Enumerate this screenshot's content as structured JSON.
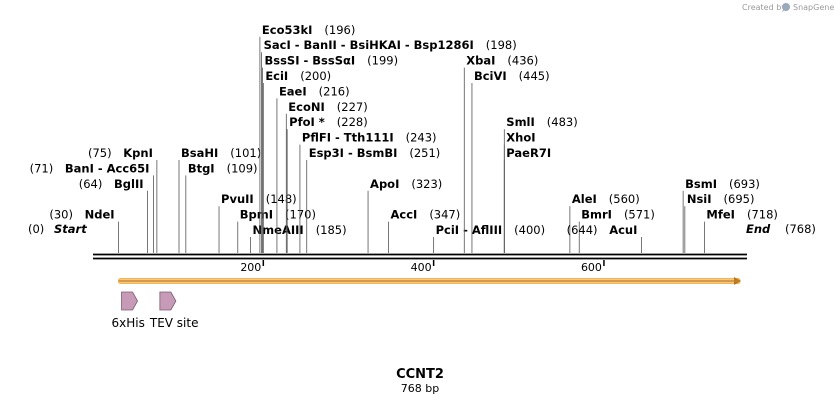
{
  "map": {
    "name": "CCNT2",
    "length_label": "768 bp",
    "length": 768,
    "start_label": "Start",
    "end_label": "End",
    "start_pos": "(0)",
    "end_pos": "(768)",
    "ruler_ticks": [
      200,
      400,
      600
    ],
    "orf": {
      "start": 30,
      "end": 768,
      "color": "#f5a623",
      "fill": "#e8a030"
    },
    "features": [
      {
        "name": "6xHis",
        "start": 30,
        "end": 48,
        "color": "#c79bb8"
      },
      {
        "name": "TEV site",
        "start": 75,
        "end": 96,
        "color": "#c79bb8"
      }
    ]
  },
  "enzymes": [
    {
      "pos": 30,
      "row": 1,
      "side": "left",
      "label": "NdeI",
      "pos_label": "(30)"
    },
    {
      "pos": 64,
      "row": 3,
      "side": "left",
      "label": "BglII",
      "pos_label": "(64)"
    },
    {
      "pos": 71,
      "row": 4,
      "side": "left",
      "label": "BanI  -  Acc65I",
      "pos_label": "(71)"
    },
    {
      "pos": 75,
      "row": 5,
      "side": "left",
      "label": "KpnI",
      "pos_label": "(75)"
    },
    {
      "pos": 101,
      "row": 5,
      "side": "right",
      "label": "BsaHI",
      "pos_label": "(101)"
    },
    {
      "pos": 109,
      "row": 4,
      "side": "right",
      "label": "BtgI",
      "pos_label": "(109)"
    },
    {
      "pos": 148,
      "row": 2,
      "side": "right",
      "label": "PvuII",
      "pos_label": "(148)"
    },
    {
      "pos": 170,
      "row": 1,
      "side": "right",
      "label": "BpmI",
      "pos_label": "(170)"
    },
    {
      "pos": 185,
      "row": 0,
      "side": "right",
      "label": "NmeAIII",
      "pos_label": "(185)"
    },
    {
      "pos": 196,
      "row": 13,
      "side": "right",
      "label": "Eco53kI",
      "pos_label": "(196)"
    },
    {
      "pos": 198,
      "row": 12,
      "side": "right",
      "label": "SacI  -  BanII  -  BsiHKAI  -  Bsp1286I",
      "pos_label": "(198)"
    },
    {
      "pos": 199,
      "row": 11,
      "side": "right",
      "label": "BssSI  -  BssSαI",
      "pos_label": "(199)"
    },
    {
      "pos": 200,
      "row": 10,
      "side": "right",
      "label": "EciI",
      "pos_label": "(200)"
    },
    {
      "pos": 216,
      "row": 9,
      "side": "right",
      "label": "EaeI",
      "pos_label": "(216)"
    },
    {
      "pos": 227,
      "row": 8,
      "side": "right",
      "label": "EcoNI",
      "pos_label": "(227)"
    },
    {
      "pos": 228,
      "row": 7,
      "side": "right",
      "label": "PfoI *",
      "pos_label": "(228)"
    },
    {
      "pos": 243,
      "row": 6,
      "side": "right",
      "label": "PflFI  -  Tth111I",
      "pos_label": "(243)"
    },
    {
      "pos": 251,
      "row": 5,
      "side": "right",
      "label": "Esp3I  -  BsmBI",
      "pos_label": "(251)"
    },
    {
      "pos": 323,
      "row": 3,
      "side": "right",
      "label": "ApoI",
      "pos_label": "(323)"
    },
    {
      "pos": 347,
      "row": 1,
      "side": "right",
      "label": "AccI",
      "pos_label": "(347)"
    },
    {
      "pos": 400,
      "row": 0,
      "side": "right",
      "label": "PciI  -  AflIII",
      "pos_label": "(400)"
    },
    {
      "pos": 436,
      "row": 11,
      "side": "right",
      "label": "XbaI",
      "pos_label": "(436)"
    },
    {
      "pos": 445,
      "row": 10,
      "side": "right",
      "label": "BciVI",
      "pos_label": "(445)"
    },
    {
      "pos": 483,
      "row": 7,
      "side": "right",
      "label": "SmlI",
      "pos_label": "(483)"
    },
    {
      "pos": 483,
      "row": 6,
      "side": "right",
      "label": "XhoI",
      "pos_label": ""
    },
    {
      "pos": 483,
      "row": 5,
      "side": "right",
      "label": "PaeR7I",
      "pos_label": ""
    },
    {
      "pos": 560,
      "row": 2,
      "side": "right",
      "label": "AleI",
      "pos_label": "(560)"
    },
    {
      "pos": 571,
      "row": 1,
      "side": "right",
      "label": "BmrI",
      "pos_label": "(571)"
    },
    {
      "pos": 644,
      "row": 0,
      "side": "left",
      "label": "AcuI",
      "pos_label": "(644)"
    },
    {
      "pos": 693,
      "row": 3,
      "side": "right",
      "label": "BsmI",
      "pos_label": "(693)"
    },
    {
      "pos": 695,
      "row": 2,
      "side": "right",
      "label": "NsiI",
      "pos_label": "(695)"
    },
    {
      "pos": 718,
      "row": 1,
      "side": "right",
      "label": "MfeI",
      "pos_label": "(718)"
    }
  ],
  "branding": {
    "created_by": "Created by",
    "product": "SnapGene"
  }
}
